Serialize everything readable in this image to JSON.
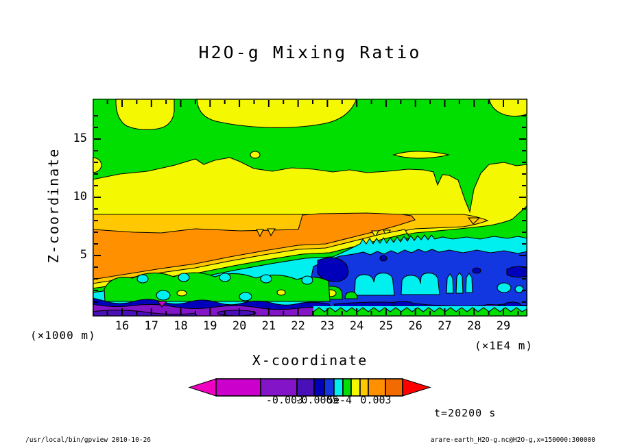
{
  "title": "H2O-g Mixing Ratio",
  "plot": {
    "x_axis": {
      "label": "X-coordinate",
      "unit": "(×1E4 m)",
      "tick_labels": [
        "16",
        "17",
        "18",
        "19",
        "20",
        "21",
        "22",
        "23",
        "24",
        "25",
        "26",
        "27",
        "28",
        "29"
      ]
    },
    "z_axis": {
      "label": "Z-coordinate",
      "unit": "(×1000 m)",
      "tick_labels": [
        "5",
        "10",
        "15"
      ]
    }
  },
  "colorbar": {
    "labels": [
      "-0.003",
      "-0.0005",
      "5e-4",
      "0.003"
    ],
    "segment_colors": [
      "#CC00CC",
      "#8414C8",
      "#4A10B8",
      "#0000BB",
      "#1236E0",
      "#00F0F0",
      "#00DF00",
      "#F4F800",
      "#FFC800",
      "#FF9000",
      "#F26B00"
    ],
    "left_arrow_color": "#F000C0",
    "right_arrow_color": "#FF0000"
  },
  "time_label": "t=20200 s",
  "footer": {
    "command": "/usr/local/bin/gpview  2010-10-26",
    "dataset": "arare-earth_H2O-g.nc@H2O-g,x=150000:300000"
  },
  "colors": {
    "green": "#00DF00",
    "yellow": "#F4F800",
    "amber": "#FFC800",
    "orange": "#FF9000",
    "cyan": "#00F0F0",
    "blue": "#1236E0",
    "darkblue": "#0000BB",
    "indigo": "#4A10B8",
    "purple": "#8414C8",
    "magenta": "#CC00CC"
  },
  "chart_data": {
    "type": "heatmap",
    "subtype": "filled_contour",
    "title": "H2O-g Mixing Ratio",
    "xlabel": "X-coordinate",
    "x_unit": "x1E4 m",
    "x_range": [
      15,
      30
    ],
    "x_ticks": [
      16,
      17,
      18,
      19,
      20,
      21,
      22,
      23,
      24,
      25,
      26,
      27,
      28,
      29
    ],
    "ylabel": "Z-coordinate",
    "y_unit": "x1000 m",
    "y_range": [
      0,
      18
    ],
    "y_ticks": [
      5,
      10,
      15
    ],
    "time": "t=20200 s",
    "labeled_contour_levels": [
      "-0.003",
      "-0.0005",
      "5e-4",
      "0.003"
    ],
    "palette_low_to_high": [
      "#F000C0",
      "#CC00CC",
      "#8414C8",
      "#4A10B8",
      "#0000BB",
      "#1236E0",
      "#00F0F0",
      "#00DF00",
      "#F4F800",
      "#FFC800",
      "#FF9000",
      "#F26B00",
      "#FF0000"
    ],
    "regions": [
      {
        "desc": "upper troposphere background near zero (green)",
        "x": [
          15,
          30
        ],
        "z": [
          10.5,
          18
        ],
        "level": "~0"
      },
      {
        "desc": "slightly positive cloud blobs (yellow) along domain top",
        "x": [
          15.8,
          27.5
        ],
        "z": [
          16.5,
          18
        ],
        "level": "+5e-4..0.003"
      },
      {
        "desc": "small yellow blob in top-right corner",
        "x": [
          28.5,
          30
        ],
        "z": [
          17,
          18
        ],
        "level": "+5e-4..0.003"
      },
      {
        "desc": "thin yellow lens",
        "x": [
          25.3,
          27.1
        ],
        "z": [
          13.2,
          13.7
        ],
        "level": "+5e-4..0.003"
      },
      {
        "desc": "positive horizontal band (yellow) across full width",
        "x": [
          15,
          30
        ],
        "z": [
          8.5,
          10.3
        ],
        "level": "+5e-4..0.003"
      },
      {
        "desc": "stronger band (amber ~0.003) below yellow band, tapering eastward",
        "x": [
          15,
          28.3
        ],
        "z": [
          7.2,
          8.5
        ],
        "level": "~0.003"
      },
      {
        "desc": "strong positive orange wedge sloping up to the east",
        "x": [
          15,
          26
        ],
        "z": [
          3.2,
          7.2
        ],
        "level": ">0.003"
      },
      {
        "desc": "cyan weakly-negative band atop blue region (east half)",
        "x": [
          22.5,
          30
        ],
        "z": [
          5.5,
          6.8
        ],
        "level": "-0.0005"
      },
      {
        "desc": "broad negative region (blue) with dark-blue strong-negative patches",
        "x": [
          22,
          30
        ],
        "z": [
          1.5,
          5.5
        ],
        "level": "-0.0005..-0.003"
      },
      {
        "desc": "turbulent mixing zone: green/cyan plumes with small positive yellow spots",
        "x": [
          16,
          23.5
        ],
        "z": [
          0.8,
          3
        ],
        "level": "mixed ±"
      },
      {
        "desc": "strongly negative surface layer (purple/indigo), magenta spot near x=17.3",
        "x": [
          15,
          23
        ],
        "z": [
          0,
          0.8
        ],
        "level": "<-0.003"
      },
      {
        "desc": "surface strip east half: dark blue over thin green/cyan layer",
        "x": [
          23,
          30
        ],
        "z": [
          0,
          0.8
        ],
        "level": "negative"
      }
    ]
  }
}
